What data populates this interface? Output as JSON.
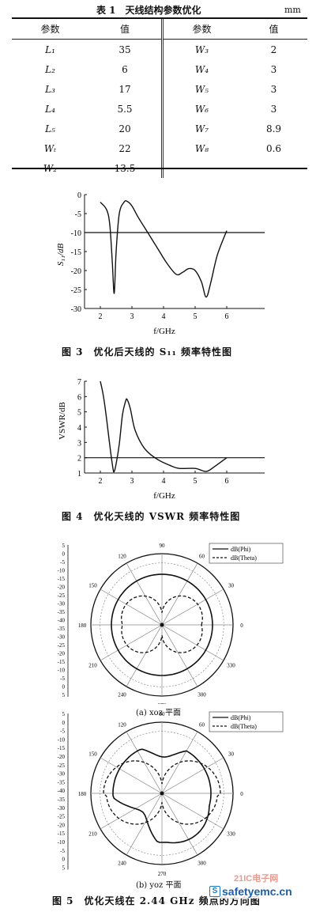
{
  "table": {
    "caption": "表 1　天线结构参数优化",
    "unit": "mm",
    "headers": [
      "参数",
      "值",
      "参数",
      "值"
    ],
    "rows": [
      [
        "L₁",
        "35",
        "W₃",
        "2"
      ],
      [
        "L₂",
        "6",
        "W₄",
        "3"
      ],
      [
        "L₃",
        "17",
        "W₅",
        "3"
      ],
      [
        "L₄",
        "5.5",
        "W₆",
        "3"
      ],
      [
        "L₅",
        "20",
        "W₇",
        "8.9"
      ],
      [
        "Wₜ",
        "22",
        "W₈",
        "0.6"
      ],
      [
        "W₂",
        "13.5",
        "",
        ""
      ]
    ]
  },
  "fig3": {
    "caption": "图 3　优化后天线的 S₁₁ 频率特性图",
    "ylabel": "S₁₁/dB",
    "xlabel": "f/GHz"
  },
  "fig4": {
    "caption": "图 4　优化天线的 VSWR 频率特性图",
    "ylabel": "VSWR/dB",
    "xlabel": "f/GHz"
  },
  "fig5": {
    "caption": "图 5　优化天线在 2.44 GHz 频点的方向图",
    "sub_a": "(a) xoz 平面",
    "sub_b": "(b) yoz 平面",
    "legend_phi": "dB(Phi)",
    "legend_theta": "dB(Theta)",
    "angle_labels": [
      "90",
      "120",
      "60",
      "150",
      "30",
      "180",
      "0",
      "210",
      "330",
      "240",
      "300",
      "270"
    ],
    "radial_ticks": [
      "5",
      "0",
      "-5",
      "-10",
      "-15",
      "-20",
      "-25",
      "-30",
      "-35",
      "-40",
      "-35",
      "-30",
      "-25",
      "-20",
      "-15",
      "-10",
      "-5",
      "0",
      "5"
    ]
  },
  "watermark": {
    "text": "safetyemc.cn",
    "site": "21IC电子网"
  },
  "chart_data": [
    {
      "type": "line",
      "title": "",
      "xlabel": "f/GHz",
      "ylabel": "S11/dB",
      "xlim": [
        1.5,
        7.2
      ],
      "ylim": [
        -30,
        0
      ],
      "xticks": [
        2,
        3,
        4,
        5,
        6
      ],
      "yticks": [
        0,
        -5,
        -10,
        -15,
        -20,
        -25,
        -30
      ],
      "reference_line": -10,
      "x": [
        2.0,
        2.2,
        2.3,
        2.38,
        2.44,
        2.5,
        2.6,
        2.75,
        2.85,
        3.0,
        3.2,
        3.5,
        3.8,
        4.1,
        4.4,
        4.6,
        4.8,
        5.0,
        5.2,
        5.35,
        5.5,
        5.7,
        6.0
      ],
      "y": [
        -2,
        -4,
        -8,
        -18,
        -26,
        -15,
        -5,
        -2,
        -1.8,
        -3,
        -6,
        -10,
        -14,
        -18,
        -21,
        -20.5,
        -19.5,
        -20,
        -23,
        -27,
        -23,
        -16,
        -9.5
      ]
    },
    {
      "type": "line",
      "title": "",
      "xlabel": "f/GHz",
      "ylabel": "VSWR/dB",
      "xlim": [
        1.5,
        7.2
      ],
      "ylim": [
        1,
        7
      ],
      "xticks": [
        2,
        3,
        4,
        5,
        6
      ],
      "yticks": [
        1,
        2,
        3,
        4,
        5,
        6,
        7
      ],
      "reference_line": 2,
      "x": [
        2.0,
        2.1,
        2.2,
        2.3,
        2.4,
        2.44,
        2.5,
        2.6,
        2.7,
        2.8,
        2.85,
        2.95,
        3.1,
        3.4,
        3.8,
        4.2,
        4.5,
        5.0,
        5.35,
        5.6,
        6.0
      ],
      "y": [
        7,
        6,
        4.5,
        2.8,
        1.3,
        1.1,
        1.6,
        2.9,
        4.8,
        5.7,
        5.8,
        5.2,
        3.8,
        2.6,
        1.9,
        1.5,
        1.3,
        1.3,
        1.1,
        1.4,
        2.0
      ]
    }
  ]
}
